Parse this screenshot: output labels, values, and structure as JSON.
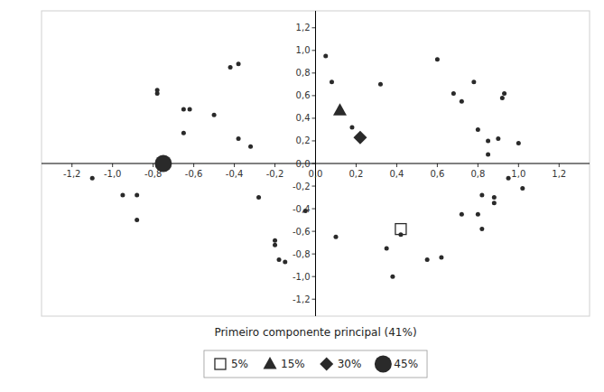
{
  "chart_data": {
    "type": "scatter",
    "xlabel": "Primeiro componente principal (41%)",
    "xlim": [
      -1.35,
      1.35
    ],
    "ylim": [
      -1.35,
      1.35
    ],
    "xticks": [
      {
        "value": -1.2,
        "label": "-1,2"
      },
      {
        "value": -1.0,
        "label": "-1,0"
      },
      {
        "value": -0.8,
        "label": "-0,8"
      },
      {
        "value": -0.6,
        "label": "-0,6"
      },
      {
        "value": -0.4,
        "label": "-0,4"
      },
      {
        "value": -0.2,
        "label": "-0,2"
      },
      {
        "value": 0.0,
        "label": "0,0"
      },
      {
        "value": 0.2,
        "label": "0,2"
      },
      {
        "value": 0.4,
        "label": "0,4"
      },
      {
        "value": 0.6,
        "label": "0,6"
      },
      {
        "value": 0.8,
        "label": "0,8"
      },
      {
        "value": 1.0,
        "label": "1,0"
      },
      {
        "value": 1.2,
        "label": "1,2"
      }
    ],
    "yticks": [
      {
        "value": -1.2,
        "label": "-1,2"
      },
      {
        "value": -1.0,
        "label": "-1,0"
      },
      {
        "value": -0.8,
        "label": "-0,8"
      },
      {
        "value": -0.6,
        "label": "-0,6"
      },
      {
        "value": -0.4,
        "label": "-0,4"
      },
      {
        "value": -0.2,
        "label": "-0,2"
      },
      {
        "value": 0.0,
        "label": "0,0"
      },
      {
        "value": 0.2,
        "label": "0,2"
      },
      {
        "value": 0.4,
        "label": "0,4"
      },
      {
        "value": 0.6,
        "label": "0,6"
      },
      {
        "value": 0.8,
        "label": "0,8"
      },
      {
        "value": 1.0,
        "label": "1,0"
      },
      {
        "value": 1.2,
        "label": "1,2"
      }
    ],
    "color": "#2a2a2a",
    "legend": "bottom",
    "grid": false,
    "series": [
      {
        "marker": "dot",
        "x": [
          -1.1,
          -0.95,
          -0.88,
          -0.88,
          -0.78,
          -0.78,
          -0.65,
          -0.62,
          -0.65,
          -0.5,
          -0.42,
          -0.38,
          -0.38,
          -0.32,
          -0.28,
          -0.2,
          -0.2,
          -0.18,
          -0.15,
          -0.05,
          0.05,
          0.08,
          0.1,
          0.18,
          0.32,
          0.35,
          0.38,
          0.42,
          0.55,
          0.6,
          0.62,
          0.68,
          0.72,
          0.72,
          0.78,
          0.8,
          0.8,
          0.82,
          0.82,
          0.85,
          0.85,
          0.88,
          0.88,
          0.9,
          0.92,
          0.93,
          0.95,
          1.0,
          1.02
        ],
        "values": [
          -0.13,
          -0.28,
          -0.28,
          -0.5,
          0.62,
          0.65,
          0.48,
          0.48,
          0.27,
          0.43,
          0.85,
          0.88,
          0.22,
          0.15,
          -0.3,
          -0.68,
          -0.72,
          -0.85,
          -0.87,
          -0.42,
          0.95,
          0.72,
          -0.65,
          0.32,
          0.7,
          -0.75,
          -1.0,
          -0.63,
          -0.85,
          0.92,
          -0.83,
          0.62,
          0.55,
          -0.45,
          0.72,
          0.3,
          -0.45,
          -0.28,
          -0.58,
          0.2,
          0.08,
          -0.3,
          -0.35,
          0.22,
          0.58,
          0.62,
          -0.13,
          0.18,
          -0.22
        ]
      },
      {
        "name": "5%",
        "marker": "open-square",
        "x": [
          0.42
        ],
        "values": [
          -0.58
        ]
      },
      {
        "name": "15%",
        "marker": "triangle",
        "x": [
          0.12
        ],
        "values": [
          0.47
        ]
      },
      {
        "name": "30%",
        "marker": "diamond",
        "x": [
          0.22
        ],
        "values": [
          0.23
        ]
      },
      {
        "name": "45%",
        "marker": "circle",
        "x": [
          -0.75
        ],
        "values": [
          0.0
        ]
      }
    ]
  }
}
